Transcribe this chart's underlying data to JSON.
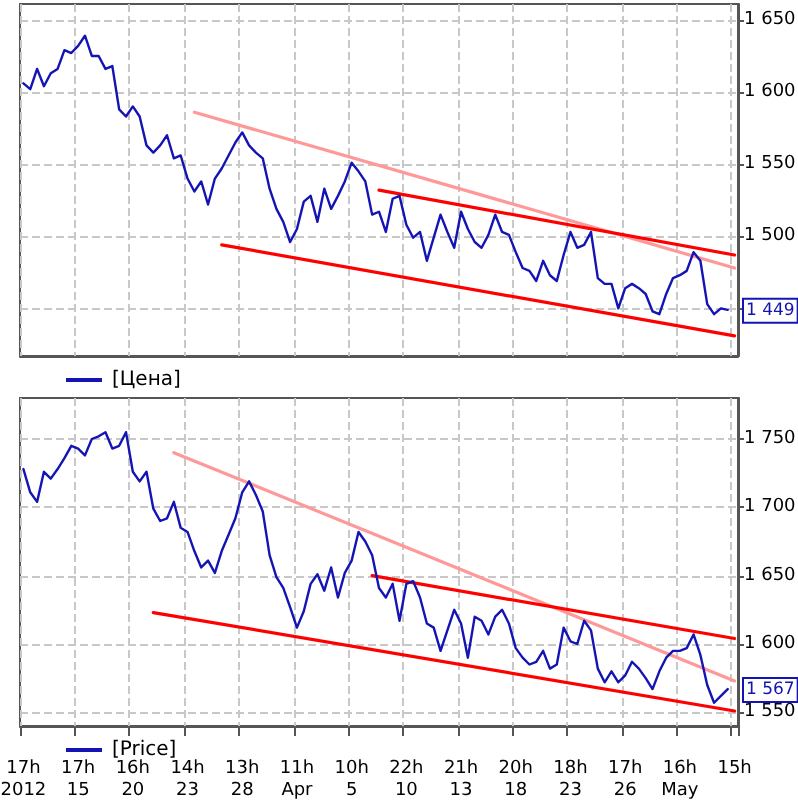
{
  "chart_data": [
    {
      "type": "line",
      "tick_labels": "y",
      "grid": true,
      "legend": "bottom left",
      "marker": "none",
      "categories": [
        null,
        null,
        null,
        null,
        null,
        null,
        null,
        null,
        null,
        null,
        null,
        null,
        null,
        null,
        null,
        null,
        null,
        null,
        null,
        null,
        null,
        null,
        null,
        null,
        null,
        null,
        null,
        null,
        null,
        null,
        null,
        null,
        null,
        null,
        null,
        null,
        null,
        null,
        null,
        null,
        null,
        null,
        null,
        null,
        null,
        null,
        null,
        null,
        null,
        null,
        null,
        null,
        null,
        null,
        null,
        null,
        null,
        null,
        null,
        null,
        null,
        null,
        null,
        null,
        null,
        null,
        null,
        null,
        null,
        null,
        null,
        null,
        null,
        null,
        null,
        null,
        null,
        null,
        null,
        null,
        null,
        null,
        null,
        null,
        null,
        null,
        null,
        null,
        null,
        null,
        null,
        null,
        null,
        null,
        null,
        null,
        null,
        null,
        null,
        null,
        null,
        null,
        null,
        null,
        null
      ],
      "ylim": [
        1417,
        1661
      ],
      "yticks": [
        {
          "value": 1450,
          "label": null
        },
        {
          "value": 1500,
          "label": "1 500"
        },
        {
          "value": 1550,
          "label": "1 550"
        },
        {
          "value": 1600,
          "label": "1 600"
        },
        {
          "value": 1650,
          "label": "1 650"
        }
      ],
      "annotations": [
        "1 449"
      ],
      "series": [
        {
          "name": "[Цена]",
          "color": "#1414b4",
          "values": [
            1606,
            1602,
            1616,
            1604,
            1613,
            1616,
            1629,
            1627,
            1632,
            1639,
            1625,
            1625,
            1616,
            1618,
            1588,
            1583,
            1590,
            1583,
            1563,
            1558,
            1563,
            1570,
            1554,
            1556,
            1540,
            1531,
            1538,
            1522,
            1540,
            1547,
            1556,
            1565,
            1572,
            1563,
            1558,
            1554,
            1533,
            1519,
            1510,
            1496,
            1505,
            1524,
            1528,
            1510,
            1533,
            1519,
            1528,
            1538,
            1551,
            1545,
            1538,
            1515,
            1517,
            1503,
            1526,
            1528,
            1508,
            1499,
            1503,
            1483,
            1499,
            1515,
            1503,
            1492,
            1517,
            1505,
            1496,
            1492,
            1501,
            1515,
            1503,
            1501,
            1489,
            1478,
            1476,
            1469,
            1483,
            1473,
            1469,
            1487,
            1503,
            1492,
            1494,
            1503,
            1471,
            1467,
            1467,
            1450,
            1464,
            1467,
            1464,
            1460,
            1448,
            1446,
            1460,
            1471,
            1473,
            1476,
            1489,
            1483,
            1453,
            1446,
            1450,
            1449,
            null
          ]
        },
        {
          "color": "#ff9999",
          "values": [
            null,
            null,
            null,
            null,
            null,
            null,
            null,
            null,
            null,
            null,
            null,
            null,
            null,
            null,
            null,
            null,
            null,
            null,
            null,
            null,
            null,
            null,
            null,
            null,
            null,
            1586,
            null,
            null,
            null,
            null,
            null,
            null,
            null,
            null,
            null,
            null,
            null,
            null,
            null,
            null,
            null,
            null,
            null,
            null,
            null,
            null,
            null,
            null,
            null,
            null,
            null,
            null,
            null,
            null,
            null,
            null,
            null,
            null,
            null,
            null,
            null,
            null,
            null,
            null,
            null,
            null,
            null,
            null,
            null,
            null,
            null,
            null,
            null,
            null,
            null,
            null,
            null,
            null,
            null,
            null,
            null,
            null,
            null,
            null,
            null,
            null,
            null,
            null,
            null,
            null,
            null,
            null,
            null,
            null,
            null,
            null,
            null,
            null,
            null,
            null,
            null,
            null,
            null,
            null,
            1478
          ]
        },
        {
          "color": "#ff0000",
          "values": [
            null,
            null,
            null,
            null,
            null,
            null,
            null,
            null,
            null,
            null,
            null,
            null,
            null,
            null,
            null,
            null,
            null,
            null,
            null,
            null,
            null,
            null,
            null,
            null,
            null,
            null,
            null,
            null,
            null,
            null,
            null,
            null,
            null,
            null,
            null,
            null,
            null,
            null,
            null,
            null,
            null,
            null,
            null,
            null,
            null,
            null,
            null,
            null,
            null,
            null,
            null,
            null,
            1532,
            null,
            null,
            null,
            null,
            null,
            null,
            null,
            null,
            null,
            null,
            null,
            null,
            null,
            null,
            null,
            null,
            null,
            null,
            null,
            null,
            null,
            null,
            null,
            null,
            null,
            null,
            null,
            null,
            null,
            null,
            null,
            null,
            null,
            null,
            null,
            null,
            null,
            null,
            null,
            null,
            null,
            null,
            null,
            null,
            null,
            null,
            null,
            null,
            null,
            null,
            null,
            1487
          ]
        },
        {
          "color": "#ff0000",
          "values": [
            null,
            null,
            null,
            null,
            null,
            null,
            null,
            null,
            null,
            null,
            null,
            null,
            null,
            null,
            null,
            null,
            null,
            null,
            null,
            null,
            null,
            null,
            null,
            null,
            null,
            null,
            null,
            null,
            null,
            1494,
            null,
            null,
            null,
            null,
            null,
            null,
            null,
            null,
            null,
            null,
            null,
            null,
            null,
            null,
            null,
            null,
            null,
            null,
            null,
            null,
            null,
            null,
            null,
            null,
            null,
            null,
            null,
            null,
            null,
            null,
            null,
            null,
            null,
            null,
            null,
            null,
            null,
            null,
            null,
            null,
            null,
            null,
            null,
            null,
            null,
            null,
            null,
            null,
            null,
            null,
            null,
            null,
            null,
            null,
            null,
            null,
            null,
            null,
            null,
            null,
            null,
            null,
            null,
            null,
            null,
            null,
            null,
            null,
            null,
            null,
            null,
            null,
            null,
            null,
            1431
          ]
        }
      ]
    },
    {
      "type": "line",
      "grid": true,
      "legend": "bottom left",
      "marker": "none",
      "categories": [
        "17h\n2012",
        null,
        null,
        null,
        null,
        null,
        null,
        null,
        "17h\n15",
        null,
        null,
        null,
        null,
        null,
        null,
        null,
        "16h\n20",
        null,
        null,
        null,
        null,
        null,
        null,
        null,
        "14h\n23",
        null,
        null,
        null,
        null,
        null,
        null,
        null,
        "13h\n28",
        null,
        null,
        null,
        null,
        null,
        null,
        null,
        "11h\nApr",
        null,
        null,
        null,
        null,
        null,
        null,
        null,
        "10h\n5",
        null,
        null,
        null,
        null,
        null,
        null,
        null,
        "22h\n10",
        null,
        null,
        null,
        null,
        null,
        null,
        null,
        "21h\n13",
        null,
        null,
        null,
        null,
        null,
        null,
        null,
        "20h\n18",
        null,
        null,
        null,
        null,
        null,
        null,
        null,
        "18h\n23",
        null,
        null,
        null,
        null,
        null,
        null,
        null,
        "17h\n26",
        null,
        null,
        null,
        null,
        null,
        null,
        null,
        "16h\nMay",
        null,
        null,
        null,
        null,
        null,
        null,
        null,
        "15h"
      ],
      "ylim": [
        1540,
        1780
      ],
      "yticks": [
        {
          "value": 1550,
          "label": "1 550"
        },
        {
          "value": 1600,
          "label": "1 600"
        },
        {
          "value": 1650,
          "label": "1 650"
        },
        {
          "value": 1700,
          "label": "1 700"
        },
        {
          "value": 1750,
          "label": "1 750"
        }
      ],
      "annotations": [
        "1 567"
      ],
      "series": [
        {
          "name": "[Price]",
          "color": "#1414b4",
          "values": [
            1728,
            1711,
            1704,
            1726,
            1721,
            1728,
            1736,
            1745,
            1743,
            1738,
            1750,
            1752,
            1755,
            1743,
            1745,
            1755,
            1726,
            1719,
            1726,
            1699,
            1690,
            1692,
            1704,
            1685,
            1682,
            1668,
            1656,
            1661,
            1652,
            1668,
            1680,
            1692,
            1711,
            1719,
            1709,
            1697,
            1665,
            1649,
            1641,
            1627,
            1612,
            1624,
            1644,
            1651,
            1639,
            1656,
            1634,
            1652,
            1661,
            1682,
            1675,
            1665,
            1641,
            1634,
            1644,
            1617,
            1644,
            1646,
            1634,
            1615,
            1612,
            1595,
            1610,
            1625,
            1615,
            1590,
            1620,
            1617,
            1607,
            1620,
            1625,
            1615,
            1597,
            1590,
            1585,
            1587,
            1595,
            1582,
            1585,
            1612,
            1602,
            1600,
            1617,
            1610,
            1582,
            1572,
            1580,
            1572,
            1577,
            1587,
            1582,
            1575,
            1567,
            1580,
            1590,
            1595,
            1595,
            1597,
            1607,
            1592,
            1570,
            1557,
            1562,
            1567,
            null
          ]
        },
        {
          "color": "#ff9999",
          "values": [
            null,
            null,
            null,
            null,
            null,
            null,
            null,
            null,
            null,
            null,
            null,
            null,
            null,
            null,
            null,
            null,
            null,
            null,
            null,
            null,
            null,
            null,
            1740,
            null,
            null,
            null,
            null,
            null,
            null,
            null,
            null,
            null,
            null,
            null,
            null,
            null,
            null,
            null,
            null,
            null,
            null,
            null,
            null,
            null,
            null,
            null,
            null,
            null,
            null,
            null,
            null,
            null,
            null,
            null,
            null,
            null,
            null,
            null,
            null,
            null,
            null,
            null,
            null,
            null,
            null,
            null,
            null,
            null,
            null,
            null,
            null,
            null,
            null,
            null,
            null,
            null,
            null,
            null,
            null,
            null,
            null,
            null,
            null,
            null,
            null,
            null,
            null,
            null,
            null,
            null,
            null,
            null,
            null,
            null,
            null,
            null,
            null,
            null,
            null,
            null,
            null,
            null,
            null,
            null,
            1573
          ]
        },
        {
          "color": "#ff0000",
          "values": [
            null,
            null,
            null,
            null,
            null,
            null,
            null,
            null,
            null,
            null,
            null,
            null,
            null,
            null,
            null,
            null,
            null,
            null,
            null,
            null,
            null,
            null,
            null,
            null,
            null,
            null,
            null,
            null,
            null,
            null,
            null,
            null,
            null,
            null,
            null,
            null,
            null,
            null,
            null,
            null,
            null,
            null,
            null,
            null,
            null,
            null,
            null,
            null,
            null,
            null,
            null,
            1650,
            null,
            null,
            null,
            null,
            null,
            null,
            null,
            null,
            null,
            null,
            null,
            null,
            null,
            null,
            null,
            null,
            null,
            null,
            null,
            null,
            null,
            null,
            null,
            null,
            null,
            null,
            null,
            null,
            null,
            null,
            null,
            null,
            null,
            null,
            null,
            null,
            null,
            null,
            null,
            null,
            null,
            null,
            null,
            null,
            null,
            null,
            null,
            null,
            null,
            null,
            null,
            null,
            1604
          ]
        },
        {
          "color": "#ff0000",
          "values": [
            null,
            null,
            null,
            null,
            null,
            null,
            null,
            null,
            null,
            null,
            null,
            null,
            null,
            null,
            null,
            null,
            null,
            null,
            null,
            1623,
            null,
            null,
            null,
            null,
            null,
            null,
            null,
            null,
            null,
            null,
            null,
            null,
            null,
            null,
            null,
            null,
            null,
            null,
            null,
            null,
            null,
            null,
            null,
            null,
            null,
            null,
            null,
            null,
            null,
            null,
            null,
            null,
            null,
            null,
            null,
            null,
            null,
            null,
            null,
            null,
            null,
            null,
            null,
            null,
            null,
            null,
            null,
            null,
            null,
            null,
            null,
            null,
            null,
            null,
            null,
            null,
            null,
            null,
            null,
            null,
            null,
            null,
            null,
            null,
            null,
            null,
            null,
            null,
            null,
            null,
            null,
            null,
            null,
            null,
            null,
            null,
            null,
            null,
            null,
            null,
            null,
            null,
            null,
            null,
            1551
          ]
        }
      ]
    }
  ]
}
